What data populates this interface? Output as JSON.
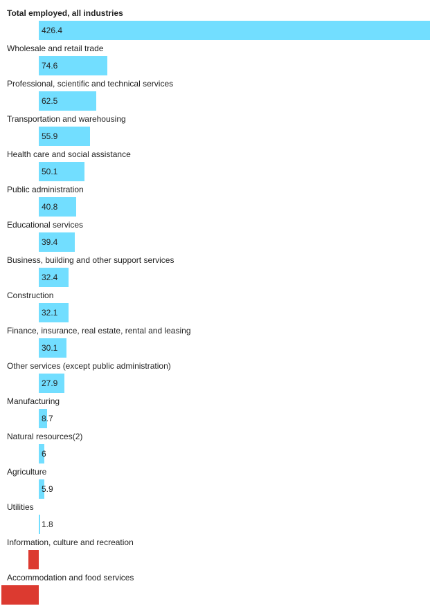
{
  "chart_data": {
    "type": "bar",
    "orientation": "horizontal",
    "title": "",
    "xlabel": "",
    "ylabel": "",
    "categories": [
      "Total employed, all industries",
      "Wholesale and retail trade",
      "Professional, scientific and technical services",
      "Transportation and warehousing",
      "Health care and social assistance",
      "Public administration",
      "Educational services",
      "Business, building and other support services",
      "Construction",
      "Finance, insurance, real estate, rental and leasing",
      "Other services (except public administration)",
      "Manufacturing",
      "Natural resources(2)",
      "Agriculture",
      "Utilities",
      "Information, culture and recreation",
      "Accommodation and food services"
    ],
    "values": [
      426.4,
      74.6,
      62.5,
      55.9,
      50.1,
      40.8,
      39.4,
      32.4,
      32.1,
      30.1,
      27.9,
      8.7,
      6,
      5.9,
      1.8,
      -11,
      -41
    ],
    "value_labels": [
      "426.4",
      "74.6",
      "62.5",
      "55.9",
      "50.1",
      "40.8",
      "39.4",
      "32.4",
      "32.1",
      "30.1",
      "27.9",
      "8.7",
      "6",
      "5.9",
      "1.8",
      "",
      ""
    ],
    "bold_categories": [
      "Total employed, all industries"
    ],
    "grid": false,
    "legend": "none",
    "colors": {
      "positive": "#72deff",
      "negative": "#dc3a30",
      "text": "#222222"
    }
  }
}
